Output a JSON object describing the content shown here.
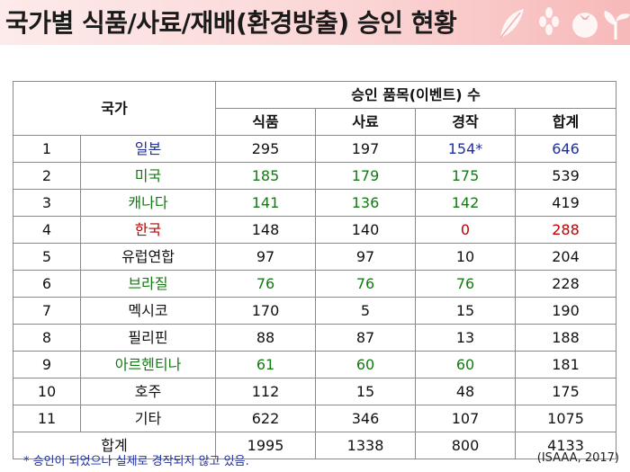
{
  "title": "국가별 식품/사료/재배(환경방출) 승인 현황",
  "colors": {
    "title_bar": "#f9c9c9",
    "blue": "#1f2fa0",
    "green": "#127a12",
    "red": "#c00000",
    "border": "#8a8a8a"
  },
  "decorations": [
    "leaf-icon",
    "grain-icon",
    "tomato-icon",
    "sprout-icon"
  ],
  "table": {
    "country_header": "국가",
    "group_header": "승인 품목(이벤트) 수",
    "columns": [
      "식품",
      "사료",
      "경작",
      "합계"
    ],
    "rows": [
      {
        "no": "1",
        "country": "일본",
        "food": "295",
        "feed": "197",
        "cultivation": "154*",
        "total": "646"
      },
      {
        "no": "2",
        "country": "미국",
        "food": "185",
        "feed": "179",
        "cultivation": "175",
        "total": "539"
      },
      {
        "no": "3",
        "country": "캐나다",
        "food": "141",
        "feed": "136",
        "cultivation": "142",
        "total": "419"
      },
      {
        "no": "4",
        "country": "한국",
        "food": "148",
        "feed": "140",
        "cultivation": "0",
        "total": "288"
      },
      {
        "no": "5",
        "country": "유럽연합",
        "food": "97",
        "feed": "97",
        "cultivation": "10",
        "total": "204"
      },
      {
        "no": "6",
        "country": "브라질",
        "food": "76",
        "feed": "76",
        "cultivation": "76",
        "total": "228"
      },
      {
        "no": "7",
        "country": "멕시코",
        "food": "170",
        "feed": "5",
        "cultivation": "15",
        "total": "190"
      },
      {
        "no": "8",
        "country": "필리핀",
        "food": "88",
        "feed": "87",
        "cultivation": "13",
        "total": "188"
      },
      {
        "no": "9",
        "country": "아르헨티나",
        "food": "61",
        "feed": "60",
        "cultivation": "60",
        "total": "181"
      },
      {
        "no": "10",
        "country": "호주",
        "food": "112",
        "feed": "15",
        "cultivation": "48",
        "total": "175"
      },
      {
        "no": "11",
        "country": "기타",
        "food": "622",
        "feed": "346",
        "cultivation": "107",
        "total": "1075"
      }
    ],
    "total_row": {
      "label": "합계",
      "food": "1995",
      "feed": "1338",
      "cultivation": "800",
      "total": "4133"
    }
  },
  "footnote": "* 승인이 되었으나 실제로 경작되지 않고 있음.",
  "source": "(ISAAA, 2017)"
}
